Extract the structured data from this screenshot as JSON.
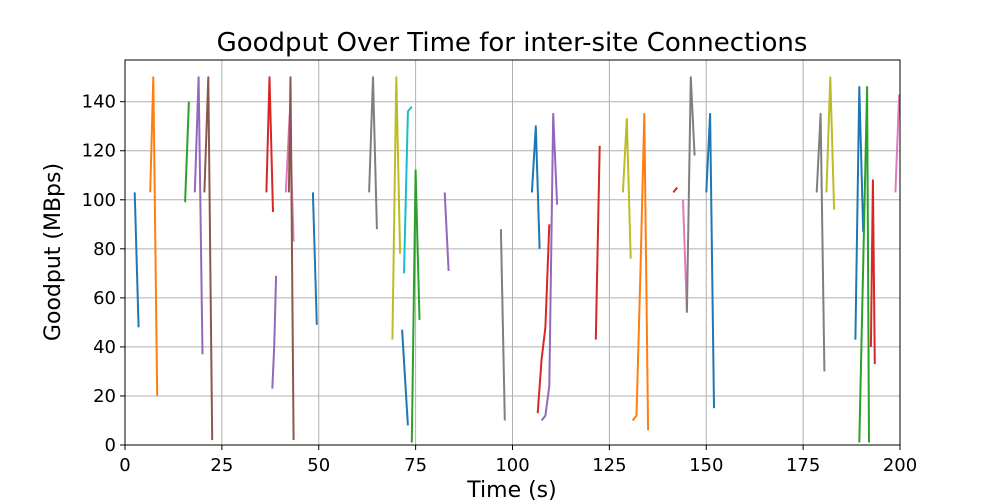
{
  "chart_data": {
    "type": "line",
    "title": "Goodput Over Time for inter-site Connections",
    "xlabel": "Time (s)",
    "ylabel": "Goodput (MBps)",
    "xlim": [
      0,
      200
    ],
    "ylim": [
      0,
      157
    ],
    "xticks": [
      0,
      25,
      50,
      75,
      100,
      125,
      150,
      175,
      200
    ],
    "yticks": [
      0,
      20,
      40,
      60,
      80,
      100,
      120,
      140
    ],
    "grid": true,
    "legend": "none",
    "colors": [
      "#1f77b4",
      "#ff7f0e",
      "#2ca02c",
      "#d62728",
      "#9467bd",
      "#8c564b",
      "#e377c2",
      "#7f7f7f",
      "#bcbd22",
      "#17becf"
    ],
    "series": [
      {
        "color_index": 0,
        "points": [
          [
            2.5,
            103
          ],
          [
            3.5,
            48
          ]
        ]
      },
      {
        "color_index": 1,
        "points": [
          [
            6.5,
            103
          ],
          [
            7.3,
            150
          ],
          [
            8.3,
            20
          ]
        ]
      },
      {
        "color_index": 2,
        "points": [
          [
            15.5,
            99
          ],
          [
            16.5,
            140
          ]
        ]
      },
      {
        "color_index": 4,
        "points": [
          [
            18.0,
            103
          ],
          [
            19.0,
            150
          ],
          [
            20.0,
            37
          ]
        ]
      },
      {
        "color_index": 5,
        "points": [
          [
            20.5,
            103
          ],
          [
            21.5,
            150
          ],
          [
            22.5,
            2
          ]
        ]
      },
      {
        "color_index": 3,
        "points": [
          [
            36.5,
            103
          ],
          [
            37.3,
            150
          ],
          [
            38.2,
            95
          ]
        ]
      },
      {
        "color_index": 4,
        "points": [
          [
            38.0,
            23
          ],
          [
            38.5,
            40
          ],
          [
            39.0,
            69
          ]
        ]
      },
      {
        "color_index": 6,
        "points": [
          [
            41.5,
            103
          ],
          [
            42.5,
            135
          ],
          [
            43.5,
            83
          ]
        ]
      },
      {
        "color_index": 5,
        "points": [
          [
            42.3,
            103
          ],
          [
            42.7,
            150
          ],
          [
            43.5,
            2
          ]
        ]
      },
      {
        "color_index": 0,
        "points": [
          [
            48.5,
            103
          ],
          [
            49.5,
            49
          ]
        ]
      },
      {
        "color_index": 7,
        "points": [
          [
            63.0,
            103
          ],
          [
            64.0,
            150
          ],
          [
            65.0,
            88
          ]
        ]
      },
      {
        "color_index": 8,
        "points": [
          [
            69.0,
            43
          ],
          [
            70.0,
            150
          ],
          [
            71.0,
            78
          ]
        ]
      },
      {
        "color_index": 0,
        "points": [
          [
            71.5,
            47
          ],
          [
            73.0,
            8
          ]
        ]
      },
      {
        "color_index": 9,
        "points": [
          [
            72.0,
            70
          ],
          [
            73.0,
            136
          ],
          [
            74.0,
            138
          ]
        ]
      },
      {
        "color_index": 2,
        "points": [
          [
            74.0,
            1
          ],
          [
            75.0,
            112
          ],
          [
            76.0,
            51
          ]
        ]
      },
      {
        "color_index": 4,
        "points": [
          [
            82.5,
            103
          ],
          [
            83.5,
            71
          ]
        ]
      },
      {
        "color_index": 7,
        "points": [
          [
            97.0,
            88
          ],
          [
            98.0,
            10
          ]
        ]
      },
      {
        "color_index": 0,
        "points": [
          [
            105.0,
            103
          ],
          [
            106.0,
            130
          ],
          [
            107.0,
            80
          ]
        ]
      },
      {
        "color_index": 3,
        "points": [
          [
            106.5,
            13
          ],
          [
            107.5,
            35
          ],
          [
            108.5,
            48
          ],
          [
            109.5,
            90
          ]
        ]
      },
      {
        "color_index": 4,
        "points": [
          [
            107.5,
            10
          ],
          [
            108.5,
            12
          ],
          [
            109.5,
            24
          ],
          [
            110.5,
            135
          ],
          [
            111.5,
            98
          ]
        ]
      },
      {
        "color_index": 3,
        "points": [
          [
            121.5,
            43
          ],
          [
            122.5,
            122
          ]
        ]
      },
      {
        "color_index": 8,
        "points": [
          [
            128.5,
            103
          ],
          [
            129.5,
            133
          ],
          [
            130.5,
            76
          ]
        ]
      },
      {
        "color_index": 1,
        "points": [
          [
            131.0,
            10
          ],
          [
            132.0,
            12
          ],
          [
            133.0,
            70
          ],
          [
            134.0,
            135
          ],
          [
            135.0,
            6
          ]
        ]
      },
      {
        "color_index": 3,
        "points": [
          [
            141.5,
            103
          ],
          [
            142.5,
            105
          ]
        ]
      },
      {
        "color_index": 6,
        "points": [
          [
            144.0,
            100
          ],
          [
            145.0,
            54
          ]
        ]
      },
      {
        "color_index": 7,
        "points": [
          [
            145.0,
            54
          ],
          [
            146.0,
            150
          ],
          [
            147.0,
            118
          ]
        ]
      },
      {
        "color_index": 0,
        "points": [
          [
            150.0,
            103
          ],
          [
            151.0,
            135
          ],
          [
            152.0,
            15
          ]
        ]
      },
      {
        "color_index": 7,
        "points": [
          [
            178.5,
            103
          ],
          [
            179.5,
            135
          ],
          [
            180.5,
            30
          ]
        ]
      },
      {
        "color_index": 8,
        "points": [
          [
            181.0,
            103
          ],
          [
            182.0,
            150
          ],
          [
            183.0,
            96
          ]
        ]
      },
      {
        "color_index": 0,
        "points": [
          [
            188.5,
            43
          ],
          [
            189.5,
            146
          ],
          [
            190.5,
            87
          ]
        ]
      },
      {
        "color_index": 2,
        "points": [
          [
            189.5,
            1
          ],
          [
            191.5,
            146
          ],
          [
            192.0,
            1
          ]
        ]
      },
      {
        "color_index": 3,
        "points": [
          [
            192.5,
            40
          ],
          [
            193.0,
            108
          ],
          [
            193.5,
            33
          ]
        ]
      },
      {
        "color_index": 6,
        "points": [
          [
            198.8,
            103
          ],
          [
            199.8,
            143
          ]
        ]
      }
    ]
  }
}
